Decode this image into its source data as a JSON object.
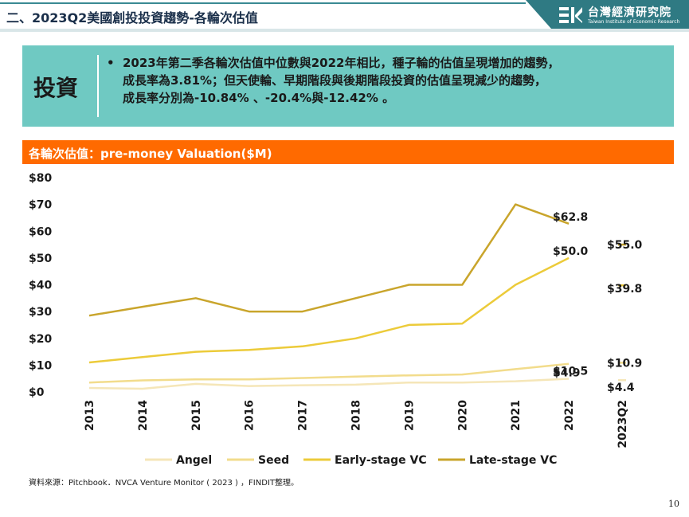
{
  "header": {
    "title": "二、2023Q2美國創投投資趨勢-各輪次估值",
    "logo_name": "台灣經濟研究院",
    "logo_sub": "Taiwan Institute of Economic Research"
  },
  "summary": {
    "label": "投資",
    "bullet": "•",
    "lines": [
      "2023年第二季各輪次估值中位數與2022年相比，種子輪的估值呈現增加的趨勢，",
      "成長率為3.81%；但天使輪、早期階段與後期階段投資的估值呈現減少的趨勢，",
      "成長率分別為-10.84% 、-20.4%與-12.42% 。"
    ]
  },
  "chart_band": {
    "title": "各輪次估值：pre-money Valuation($M)"
  },
  "chart_data": {
    "type": "line",
    "categories": [
      "2013",
      "2014",
      "2015",
      "2016",
      "2017",
      "2018",
      "2019",
      "2020",
      "2021",
      "2022"
    ],
    "extra_category": "2023Q2",
    "y_ticks": [
      "$0",
      "$10",
      "$20",
      "$30",
      "$40",
      "$50",
      "$60",
      "$70",
      "$80"
    ],
    "ylim": [
      0,
      80
    ],
    "grid": false,
    "legend_position": "bottom",
    "series": [
      {
        "name": "Angel",
        "color": "#f5e6b8",
        "values": [
          1.5,
          1.2,
          3.0,
          2.2,
          2.5,
          2.7,
          3.5,
          3.5,
          4.0,
          4.9
        ],
        "q2": 4.4,
        "end_label": "$4.9",
        "q2_label": "$4.4"
      },
      {
        "name": "Seed",
        "color": "#f2dc8c",
        "values": [
          3.5,
          4.3,
          4.7,
          4.7,
          5.2,
          5.7,
          6.2,
          6.5,
          8.5,
          10.5
        ],
        "q2": 10.9,
        "end_label": "$10.5",
        "q2_label": "$10.9"
      },
      {
        "name": "Early-stage VC",
        "color": "#eccb3a",
        "values": [
          11.0,
          13.0,
          15.0,
          15.7,
          17.0,
          20.0,
          25.0,
          25.5,
          40.0,
          50.0
        ],
        "q2": 39.8,
        "end_label": "$50.0",
        "q2_label": "$39.8"
      },
      {
        "name": "Late-stage VC",
        "color": "#c9a52c",
        "values": [
          28.5,
          31.8,
          35.0,
          30.0,
          30.0,
          35.0,
          40.0,
          40.0,
          70.0,
          62.8
        ],
        "q2": 55.0,
        "end_label": "$62.8",
        "q2_label": "$55.0"
      }
    ]
  },
  "source": "資料來源：Pitchbook．NVCA Venture Monitor ( 2023 ) ，FINDIT整理。",
  "page_number": "10"
}
